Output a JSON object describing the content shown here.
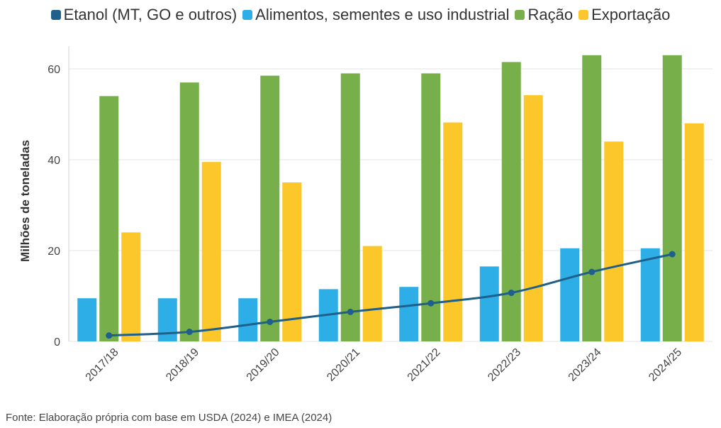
{
  "chart_data": {
    "type": "bar",
    "categories": [
      "2017/18",
      "2018/19",
      "2019/20",
      "2020/21",
      "2021/22",
      "2022/23",
      "2023/24",
      "2024/25"
    ],
    "series": [
      {
        "name": "Etanol (MT, GO e outros)",
        "kind": "line",
        "color": "#1f5f8b",
        "values": [
          1.3,
          2.1,
          4.3,
          6.5,
          8.4,
          10.7,
          15.3,
          19.2
        ]
      },
      {
        "name": "Alimentos, sementes e uso industrial",
        "kind": "bar",
        "color": "#2eaee6",
        "values": [
          9.5,
          9.5,
          9.5,
          11.5,
          12,
          16.5,
          20.5,
          20.5
        ]
      },
      {
        "name": "Ração",
        "kind": "bar",
        "color": "#77b04b",
        "values": [
          54,
          57,
          58.5,
          59,
          59,
          61.5,
          63,
          63
        ]
      },
      {
        "name": "Exportação",
        "kind": "bar",
        "color": "#fcc72a",
        "values": [
          24,
          39.5,
          35,
          21,
          48.2,
          54.2,
          44,
          48
        ]
      }
    ],
    "ylabel": "Milhões de toneladas",
    "xlabel": "",
    "ylim": [
      0,
      65
    ],
    "yticks": [
      0,
      20,
      40,
      60
    ],
    "grid": true,
    "legend_position": "top"
  },
  "source": "Fonte: Elaboração própria com base em USDA (2024) e IMEA (2024)"
}
